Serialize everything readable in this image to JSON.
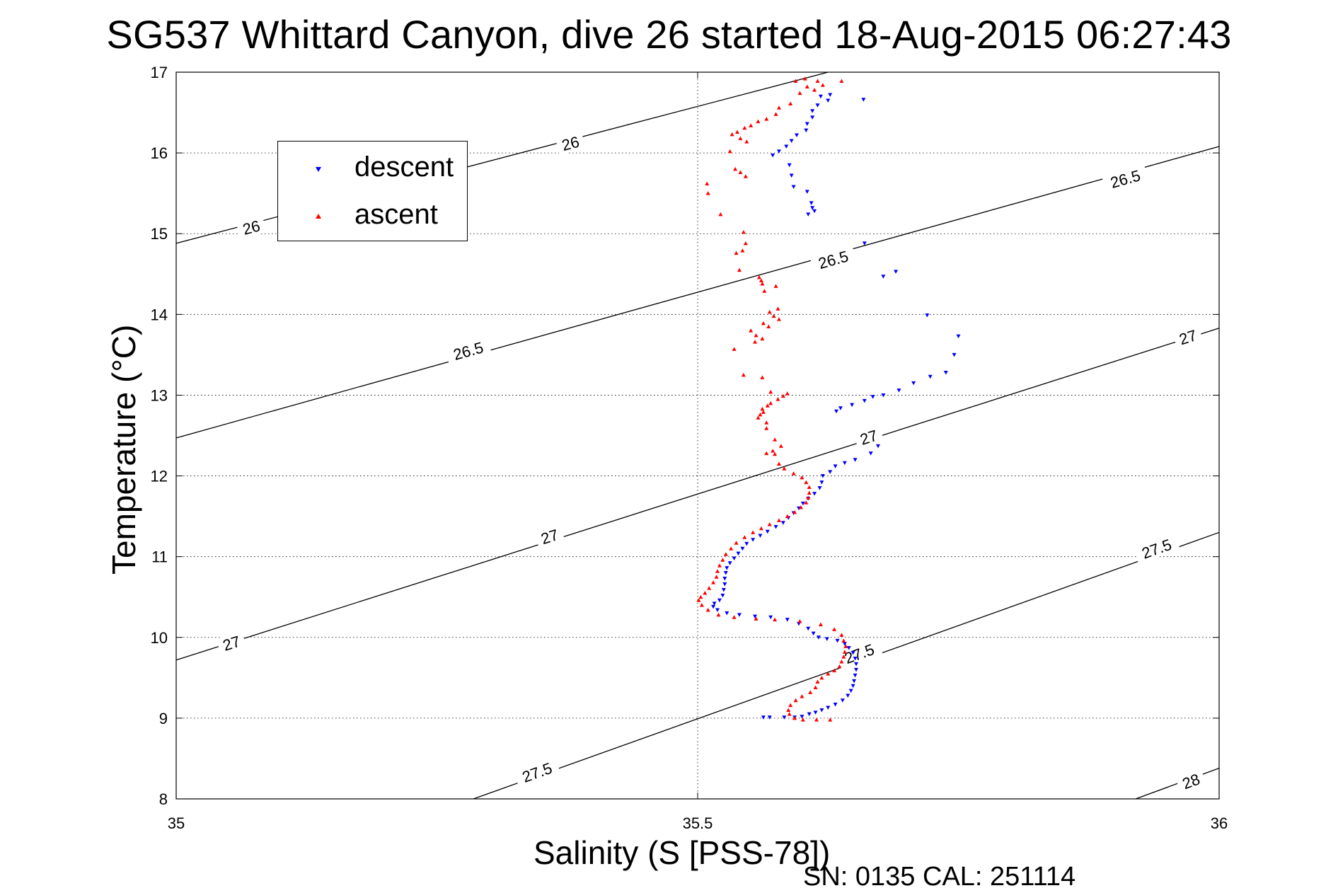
{
  "title": "SG537 Whittard Canyon, dive 26 started 18-Aug-2015 06:27:43",
  "footer": "SN: 0135  CAL: 251114",
  "chart_data": {
    "type": "scatter",
    "title": "SG537 Whittard Canyon, dive 26 started 18-Aug-2015 06:27:43",
    "xlabel": "Salinity (S [PSS-78])",
    "ylabel": "Temperature (°C)",
    "xlim": [
      35,
      36
    ],
    "ylim": [
      8,
      17
    ],
    "x_ticks": [
      "35",
      "35.5",
      "36"
    ],
    "y_ticks": [
      "8",
      "9",
      "10",
      "11",
      "12",
      "13",
      "14",
      "15",
      "16",
      "17"
    ],
    "grid": true,
    "legend_position": "top-left",
    "legend": [
      {
        "name": "descent",
        "color": "#0000ff",
        "marker": "triangle-down"
      },
      {
        "name": "ascent",
        "color": "#ff0000",
        "marker": "triangle-up"
      }
    ],
    "isopycnals": [
      {
        "label": "26",
        "segment": [
          [
            35.0,
            14.88
          ],
          [
            35.625,
            17.0
          ]
        ],
        "labels_at": [
          [
            35.072,
            15.08
          ],
          [
            35.378,
            16.12
          ]
        ]
      },
      {
        "label": "26.5",
        "segment": [
          [
            35.0,
            12.47
          ],
          [
            36.0,
            16.08
          ]
        ],
        "labels_at": [
          [
            35.28,
            13.55
          ],
          [
            35.63,
            14.68
          ],
          [
            35.91,
            15.68
          ]
        ]
      },
      {
        "label": "27",
        "segment": [
          [
            35.0,
            9.72
          ],
          [
            36.0,
            13.83
          ]
        ],
        "labels_at": [
          [
            35.053,
            9.93
          ],
          [
            35.358,
            11.25
          ],
          [
            35.664,
            12.48
          ],
          [
            35.97,
            13.72
          ]
        ]
      },
      {
        "label": "27.5",
        "segment": [
          [
            35.285,
            8.0
          ],
          [
            36.0,
            11.3
          ]
        ],
        "labels_at": [
          [
            35.346,
            8.33
          ],
          [
            35.655,
            9.8
          ],
          [
            35.94,
            11.1
          ]
        ]
      },
      {
        "label": "28",
        "segment": [
          [
            35.92,
            8.0
          ],
          [
            36.0,
            8.38
          ]
        ],
        "labels_at": [
          [
            35.973,
            8.22
          ]
        ]
      }
    ],
    "series": [
      {
        "name": "descent",
        "color": "#0000ff",
        "points": [
          [
            35.659,
            16.66
          ],
          [
            35.627,
            16.72
          ],
          [
            35.618,
            16.7
          ],
          [
            35.625,
            16.65
          ],
          [
            35.615,
            16.59
          ],
          [
            35.61,
            16.52
          ],
          [
            35.61,
            16.44
          ],
          [
            35.605,
            16.36
          ],
          [
            35.604,
            16.28
          ],
          [
            35.595,
            16.22
          ],
          [
            35.59,
            16.15
          ],
          [
            35.585,
            16.08
          ],
          [
            35.578,
            16.02
          ],
          [
            35.572,
            15.97
          ],
          [
            35.588,
            15.85
          ],
          [
            35.59,
            15.72
          ],
          [
            35.592,
            15.58
          ],
          [
            35.605,
            15.52
          ],
          [
            35.609,
            15.38
          ],
          [
            35.61,
            15.32
          ],
          [
            35.612,
            15.28
          ],
          [
            35.606,
            15.24
          ],
          [
            35.66,
            14.88
          ],
          [
            35.69,
            14.53
          ],
          [
            35.678,
            14.47
          ],
          [
            35.72,
            13.99
          ],
          [
            35.75,
            13.73
          ],
          [
            35.746,
            13.5
          ],
          [
            35.738,
            13.28
          ],
          [
            35.723,
            13.23
          ],
          [
            35.707,
            13.15
          ],
          [
            35.693,
            13.06
          ],
          [
            35.678,
            13.0
          ],
          [
            35.668,
            12.98
          ],
          [
            35.66,
            12.93
          ],
          [
            35.648,
            12.88
          ],
          [
            35.637,
            12.84
          ],
          [
            35.633,
            12.8
          ],
          [
            35.673,
            12.37
          ],
          [
            35.666,
            12.28
          ],
          [
            35.651,
            12.2
          ],
          [
            35.641,
            12.16
          ],
          [
            35.632,
            12.12
          ],
          [
            35.627,
            12.05
          ],
          [
            35.62,
            12.0
          ],
          [
            35.619,
            11.92
          ],
          [
            35.617,
            11.85
          ],
          [
            35.612,
            11.78
          ],
          [
            35.606,
            11.72
          ],
          [
            35.601,
            11.66
          ],
          [
            35.597,
            11.6
          ],
          [
            35.592,
            11.54
          ],
          [
            35.587,
            11.48
          ],
          [
            35.582,
            11.42
          ],
          [
            35.575,
            11.37
          ],
          [
            35.567,
            11.31
          ],
          [
            35.56,
            11.26
          ],
          [
            35.553,
            11.21
          ],
          [
            35.547,
            11.16
          ],
          [
            35.543,
            11.1
          ],
          [
            35.539,
            11.04
          ],
          [
            35.535,
            10.98
          ],
          [
            35.531,
            10.92
          ],
          [
            35.528,
            10.86
          ],
          [
            35.527,
            10.8
          ],
          [
            35.526,
            10.73
          ],
          [
            35.526,
            10.66
          ],
          [
            35.525,
            10.59
          ],
          [
            35.524,
            10.52
          ],
          [
            35.521,
            10.46
          ],
          [
            35.516,
            10.42
          ],
          [
            35.515,
            10.38
          ],
          [
            35.519,
            10.34
          ],
          [
            35.528,
            10.3
          ],
          [
            35.54,
            10.28
          ],
          [
            35.555,
            10.26
          ],
          [
            35.57,
            10.25
          ],
          [
            35.586,
            10.22
          ],
          [
            35.597,
            10.17
          ],
          [
            35.606,
            10.11
          ],
          [
            35.611,
            10.05
          ],
          [
            35.616,
            10.0
          ],
          [
            35.624,
            9.98
          ],
          [
            35.634,
            9.96
          ],
          [
            35.641,
            9.92
          ],
          [
            35.645,
            9.87
          ],
          [
            35.649,
            9.81
          ],
          [
            35.651,
            9.74
          ],
          [
            35.652,
            9.67
          ],
          [
            35.652,
            9.6
          ],
          [
            35.651,
            9.53
          ],
          [
            35.65,
            9.46
          ],
          [
            35.649,
            9.4
          ],
          [
            35.647,
            9.34
          ],
          [
            35.644,
            9.28
          ],
          [
            35.639,
            9.22
          ],
          [
            35.632,
            9.17
          ],
          [
            35.625,
            9.13
          ],
          [
            35.619,
            9.1
          ],
          [
            35.613,
            9.07
          ],
          [
            35.607,
            9.05
          ],
          [
            35.6,
            9.02
          ],
          [
            35.593,
            9.01
          ],
          [
            35.583,
            9.01
          ],
          [
            35.569,
            9.01
          ],
          [
            35.563,
            9.01
          ]
        ]
      },
      {
        "name": "ascent",
        "color": "#ff0000",
        "points": [
          [
            35.594,
            16.89
          ],
          [
            35.603,
            16.92
          ],
          [
            35.615,
            16.89
          ],
          [
            35.62,
            16.84
          ],
          [
            35.638,
            16.89
          ],
          [
            35.605,
            16.82
          ],
          [
            35.612,
            16.78
          ],
          [
            35.598,
            16.74
          ],
          [
            35.589,
            16.61
          ],
          [
            35.578,
            16.56
          ],
          [
            35.575,
            16.48
          ],
          [
            35.566,
            16.42
          ],
          [
            35.558,
            16.39
          ],
          [
            35.551,
            16.34
          ],
          [
            35.545,
            16.31
          ],
          [
            35.538,
            16.26
          ],
          [
            35.533,
            16.23
          ],
          [
            35.541,
            16.18
          ],
          [
            35.547,
            16.14
          ],
          [
            35.531,
            16.02
          ],
          [
            35.536,
            15.8
          ],
          [
            35.541,
            15.76
          ],
          [
            35.546,
            15.71
          ],
          [
            35.509,
            15.62
          ],
          [
            35.51,
            15.5
          ],
          [
            35.522,
            15.24
          ],
          [
            35.544,
            15.02
          ],
          [
            35.546,
            14.88
          ],
          [
            35.543,
            14.79
          ],
          [
            35.537,
            14.76
          ],
          [
            35.54,
            14.55
          ],
          [
            35.559,
            14.46
          ],
          [
            35.561,
            14.42
          ],
          [
            35.562,
            14.38
          ],
          [
            35.575,
            14.35
          ],
          [
            35.564,
            14.29
          ],
          [
            35.577,
            14.07
          ],
          [
            35.569,
            14.03
          ],
          [
            35.573,
            13.98
          ],
          [
            35.578,
            13.94
          ],
          [
            35.563,
            13.89
          ],
          [
            35.568,
            13.85
          ],
          [
            35.551,
            13.8
          ],
          [
            35.556,
            13.74
          ],
          [
            35.562,
            13.7
          ],
          [
            35.555,
            13.66
          ],
          [
            35.535,
            13.57
          ],
          [
            35.544,
            13.25
          ],
          [
            35.562,
            13.22
          ],
          [
            35.57,
            13.04
          ],
          [
            35.586,
            13.02
          ],
          [
            35.582,
            12.99
          ],
          [
            35.577,
            12.95
          ],
          [
            35.57,
            12.9
          ],
          [
            35.567,
            12.87
          ],
          [
            35.562,
            12.83
          ],
          [
            35.563,
            12.79
          ],
          [
            35.56,
            12.76
          ],
          [
            35.558,
            12.72
          ],
          [
            35.566,
            12.66
          ],
          [
            35.566,
            12.59
          ],
          [
            35.574,
            12.45
          ],
          [
            35.58,
            12.37
          ],
          [
            35.572,
            12.31
          ],
          [
            35.566,
            12.28
          ],
          [
            35.574,
            12.27
          ],
          [
            35.578,
            12.15
          ],
          [
            35.583,
            12.09
          ],
          [
            35.592,
            12.03
          ],
          [
            35.6,
            11.98
          ],
          [
            35.604,
            11.92
          ],
          [
            35.607,
            11.86
          ],
          [
            35.607,
            11.79
          ],
          [
            35.606,
            11.73
          ],
          [
            35.604,
            11.67
          ],
          [
            35.599,
            11.61
          ],
          [
            35.593,
            11.55
          ],
          [
            35.586,
            11.5
          ],
          [
            35.578,
            11.45
          ],
          [
            35.569,
            11.4
          ],
          [
            35.561,
            11.35
          ],
          [
            35.553,
            11.3
          ],
          [
            35.545,
            11.24
          ],
          [
            35.537,
            11.17
          ],
          [
            35.532,
            11.1
          ],
          [
            35.527,
            11.03
          ],
          [
            35.524,
            10.96
          ],
          [
            35.521,
            10.89
          ],
          [
            35.519,
            10.82
          ],
          [
            35.518,
            10.75
          ],
          [
            35.515,
            10.68
          ],
          [
            35.511,
            10.61
          ],
          [
            35.507,
            10.55
          ],
          [
            35.503,
            10.5
          ],
          [
            35.501,
            10.46
          ],
          [
            35.504,
            10.4
          ],
          [
            35.51,
            10.34
          ],
          [
            35.52,
            10.28
          ],
          [
            35.535,
            10.25
          ],
          [
            35.556,
            10.23
          ],
          [
            35.574,
            10.22
          ],
          [
            35.598,
            10.2
          ],
          [
            35.618,
            10.16
          ],
          [
            35.631,
            10.1
          ],
          [
            35.638,
            10.03
          ],
          [
            35.64,
            9.96
          ],
          [
            35.642,
            9.89
          ],
          [
            35.641,
            9.82
          ],
          [
            35.64,
            9.76
          ],
          [
            35.638,
            9.7
          ],
          [
            35.636,
            9.64
          ],
          [
            35.631,
            9.59
          ],
          [
            35.625,
            9.55
          ],
          [
            35.619,
            9.5
          ],
          [
            35.615,
            9.45
          ],
          [
            35.613,
            9.38
          ],
          [
            35.608,
            9.32
          ],
          [
            35.6,
            9.27
          ],
          [
            35.594,
            9.22
          ],
          [
            35.589,
            9.16
          ],
          [
            35.587,
            9.1
          ],
          [
            35.588,
            9.05
          ],
          [
            35.593,
            9.0
          ],
          [
            35.601,
            8.98
          ],
          [
            35.614,
            8.98
          ],
          [
            35.627,
            8.98
          ]
        ]
      }
    ]
  }
}
